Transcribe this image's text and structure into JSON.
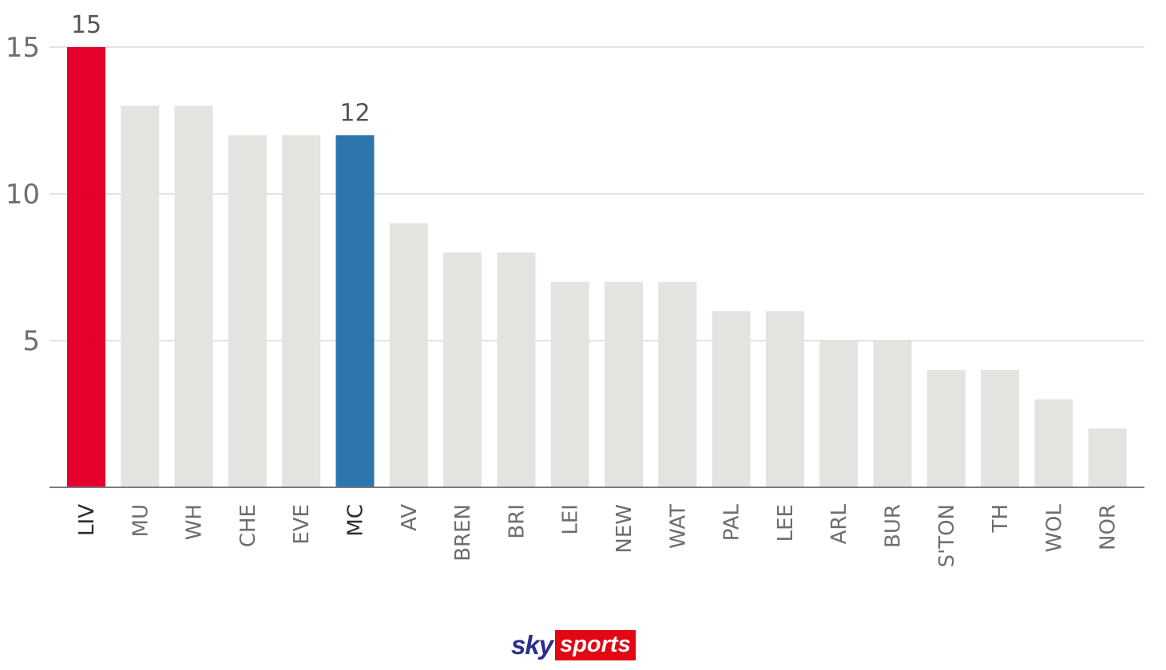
{
  "chart_data": {
    "type": "bar",
    "categories": [
      "LIV",
      "MU",
      "WH",
      "CHE",
      "EVE",
      "MC",
      "AV",
      "BREN",
      "BRI",
      "LEI",
      "NEW",
      "WAT",
      "PAL",
      "LEE",
      "ARL",
      "BUR",
      "S'TON",
      "TH",
      "WOL",
      "NOR"
    ],
    "values": [
      15,
      13,
      13,
      12,
      12,
      12,
      9,
      8,
      8,
      7,
      7,
      7,
      6,
      6,
      5,
      5,
      4,
      4,
      3,
      2
    ],
    "highlight": {
      "LIV": "#e4002b",
      "MC": "#2e75ad"
    },
    "default_color": "#e4e3e0",
    "data_labels": [
      {
        "category": "LIV",
        "text": "15"
      },
      {
        "category": "MC",
        "text": "12"
      }
    ],
    "yticks": [
      "5",
      "10",
      "15"
    ],
    "ylim": [
      0,
      15
    ],
    "grid": true
  },
  "logo": {
    "sky": "sky",
    "sports": "sports"
  }
}
